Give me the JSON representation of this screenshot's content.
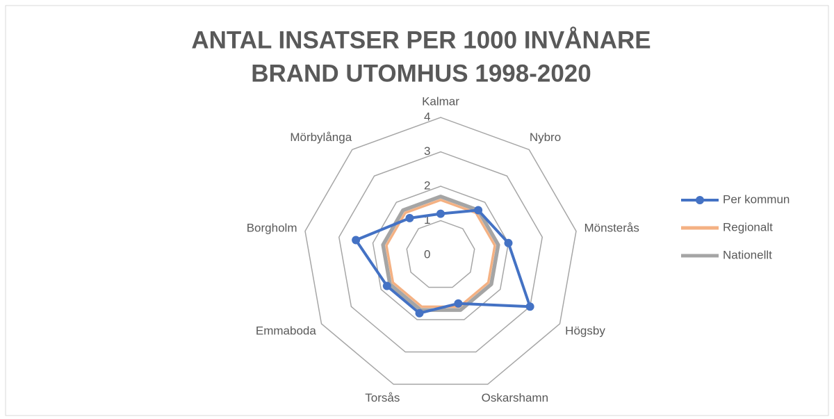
{
  "chart_data": {
    "type": "radar",
    "title": [
      "ANTAL INSATSER PER 1000 INVÅNARE",
      "BRAND UTOMHUS 1998-2020"
    ],
    "categories": [
      "Kalmar",
      "Nybro",
      "Mönsterås",
      "Högsby",
      "Oskarshamn",
      "Torsås",
      "Emmaboda",
      "Borgholm",
      "Mörbylånga"
    ],
    "series": [
      {
        "name": "Per kommun",
        "color": "#4472c4",
        "markers": true,
        "values": [
          1.2,
          1.7,
          2.0,
          3.0,
          1.5,
          1.8,
          1.8,
          2.5,
          1.4
        ]
      },
      {
        "name": "Regionalt",
        "color": "#f4b183",
        "markers": false,
        "values": [
          1.6,
          1.6,
          1.6,
          1.6,
          1.6,
          1.6,
          1.6,
          1.6,
          1.6
        ]
      },
      {
        "name": "Nationellt",
        "color": "#a5a5a5",
        "markers": false,
        "values": [
          1.7,
          1.7,
          1.7,
          1.7,
          1.7,
          1.7,
          1.7,
          1.7,
          1.7
        ]
      }
    ],
    "ylim": [
      0,
      4
    ],
    "yticks": [
      0,
      1,
      2,
      3,
      4
    ],
    "grid": true,
    "legend": "right"
  }
}
